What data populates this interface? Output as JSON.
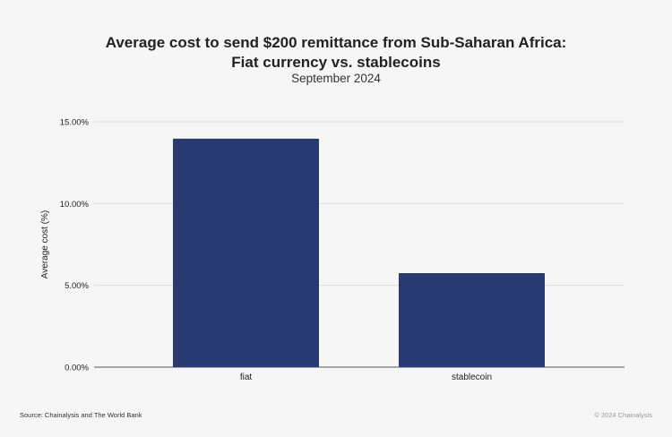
{
  "chart_data": {
    "type": "bar",
    "title_line1": "Average cost to send $200 remittance from Sub-Saharan Africa:",
    "title_line2": "Fiat currency vs. stablecoins",
    "subtitle": "September 2024",
    "categories": [
      "fiat",
      "stablecoin"
    ],
    "values": [
      13.97,
      5.75
    ],
    "xlabel": "",
    "ylabel": "Average cost (%)",
    "ylim": [
      0,
      15
    ],
    "yticks": [
      "0.00%",
      "5.00%",
      "10.00%",
      "15.00%"
    ],
    "grid": true,
    "bar_color": "#293971"
  },
  "footer": {
    "source": "Source: Chainalysis and The World Bank",
    "copyright": "© 2024 Chainalysis"
  }
}
